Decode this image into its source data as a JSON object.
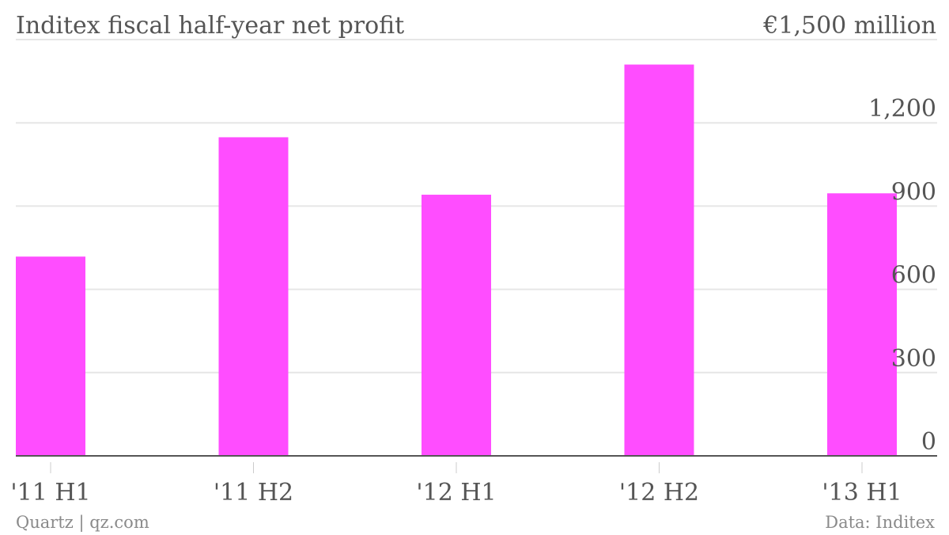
{
  "chart_data": {
    "type": "bar",
    "title": "Inditex fiscal half-year net profit",
    "unit_label": "€1,500 million",
    "categories": [
      "'11 H1",
      "'11 H2",
      "'12 H1",
      "'12 H2",
      "'13 H1"
    ],
    "values": [
      718,
      1148,
      941,
      1410,
      946
    ],
    "ylim": [
      0,
      1500
    ],
    "y_ticks": [
      0,
      300,
      600,
      900,
      1200
    ],
    "y_tick_labels": [
      "0",
      "300",
      "600",
      "900",
      "1,200"
    ],
    "grid": true,
    "bar_color": "#ff4dff",
    "source_left": "Quartz | qz.com",
    "source_right": "Data: Inditex"
  }
}
